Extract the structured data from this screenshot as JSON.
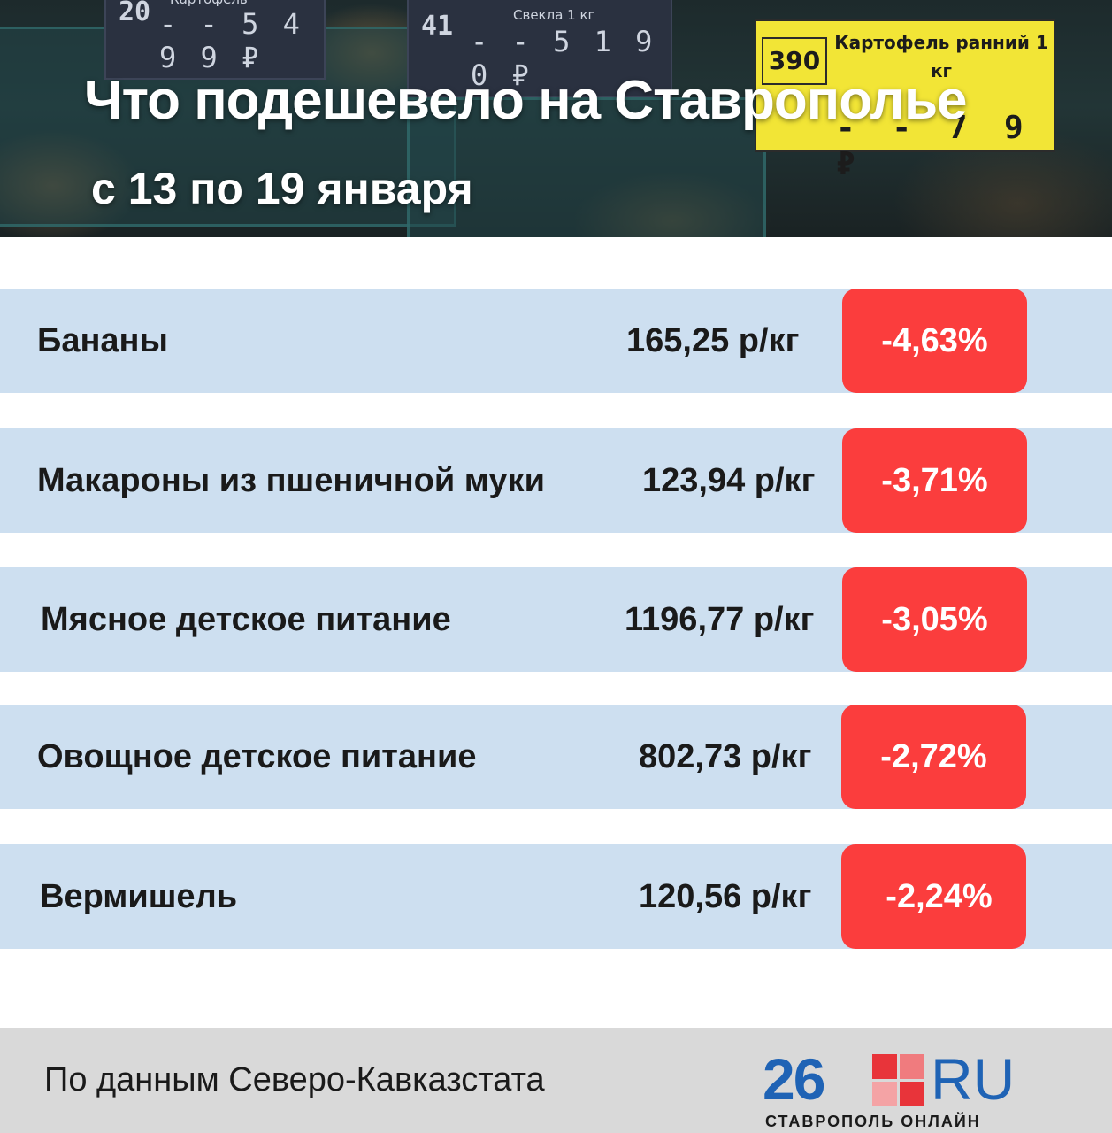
{
  "header": {
    "title": "Что подешевело на Ставрополье",
    "subtitle": "с 13 по 19 января",
    "background_tags": [
      {
        "number": "20",
        "name": "Картофель",
        "price": "- - 5 4 9 9 ₽"
      },
      {
        "number": "41",
        "name": "Свекла 1 кг",
        "price": "- - 5 1 9 0 ₽"
      },
      {
        "number": "390",
        "name": "Картофель ранний 1 кг",
        "price": "- - 7 9 ₽"
      }
    ]
  },
  "rows": [
    {
      "name": "Бананы",
      "price": "165,25 р/кг",
      "change": "-4,63%"
    },
    {
      "name": "Макароны из пшеничной муки",
      "price": "123,94 р/кг",
      "change": "-3,71%"
    },
    {
      "name": "Мясное детское питание",
      "price": "1196,77 р/кг",
      "change": "-3,05%"
    },
    {
      "name": "Овощное детское питание",
      "price": "802,73 р/кг",
      "change": "-2,72%"
    },
    {
      "name": "Вермишель",
      "price": "120,56 р/кг",
      "change": "-2,24%"
    }
  ],
  "footer": {
    "source": "По данным Северо-Кавказстата",
    "logo": {
      "number": "26",
      "domain": "RU",
      "tagline": "СТАВРОПОЛЬ ОНЛАЙН"
    }
  },
  "colors": {
    "row_background": "#cddff0",
    "badge": "#fb3d3d",
    "footer_background": "#d9d9d9",
    "logo_blue": "#1f63b5",
    "logo_red": "#e8343a"
  }
}
